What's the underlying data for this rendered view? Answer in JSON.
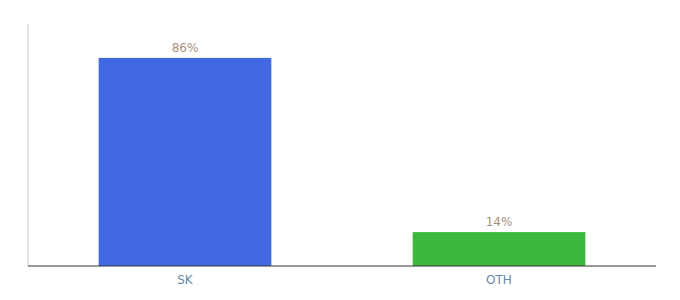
{
  "chart_data": {
    "type": "bar",
    "categories": [
      "SK",
      "OTH"
    ],
    "values": [
      86,
      14
    ],
    "value_labels": [
      "86%",
      "14%"
    ],
    "colors": [
      "#4169e1",
      "#3cb93c"
    ],
    "ylim": [
      0,
      100
    ],
    "yticks": [],
    "grid": false,
    "data_labels": true,
    "tick_labels": "x"
  }
}
